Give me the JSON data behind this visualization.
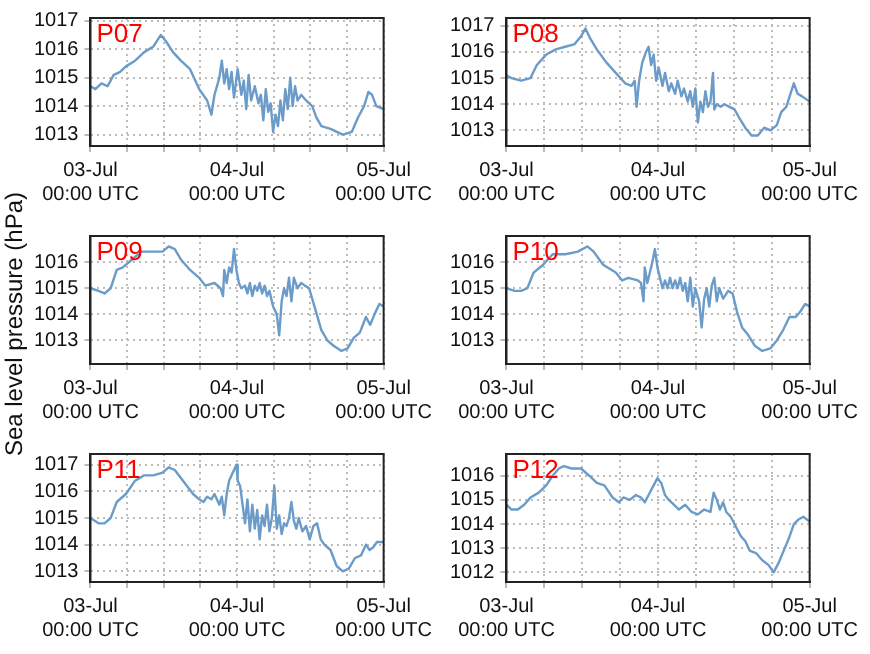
{
  "chart_data": [
    {
      "type": "line",
      "title": "P07",
      "xlim": [
        "--07-03",
        "--07-05"
      ],
      "xticks": [
        {
          "value": "--07-03",
          "label": "03-Jul\n00:00 UTC"
        },
        {
          "value": "--07-03T06:00",
          "label": null
        },
        {
          "value": "--07-03T12:00",
          "label": null
        },
        {
          "value": "--07-03T18:00",
          "label": null
        },
        {
          "value": "--07-04",
          "label": "04-Jul\n00:00 UTC"
        },
        {
          "value": "--07-04T06:00",
          "label": null
        },
        {
          "value": "--07-04T12:00",
          "label": null
        },
        {
          "value": "--07-04T18:00",
          "label": null
        },
        {
          "value": "--07-05",
          "label": "05-Jul\n00:00 UTC"
        }
      ],
      "ylim": [
        1012.6,
        1017.1
      ],
      "yticks": [
        1013,
        1014,
        1015,
        1016,
        1017
      ],
      "grid": true,
      "line_style": "solid",
      "marker": "none",
      "series": [
        {
          "color": "#6b9bc8",
          "x": [
            "--07-03T00:00",
            "--07-03T00:48",
            "--07-03T01:48",
            "--07-03T02:48",
            "--07-03T03:48",
            "--07-03T04:48",
            "--07-03T05:48",
            "--07-03T07:18",
            "--07-03T08:48",
            "--07-03T10:18",
            "--07-03T11:30",
            "--07-03T12:18",
            "--07-03T13:30",
            "--07-03T14:48",
            "--07-03T16:18",
            "--07-03T17:48",
            "--07-03T19:06",
            "--07-03T19:48",
            "--07-03T20:18",
            "--07-03T21:06",
            "--07-03T21:30",
            "--07-03T21:54",
            "--07-03T22:18",
            "--07-03T22:42",
            "--07-03T23:06",
            "--07-03T23:30",
            "--07-04T00:06",
            "--07-04T00:42",
            "--07-04T01:06",
            "--07-04T01:30",
            "--07-04T01:54",
            "--07-04T02:18",
            "--07-04T02:54",
            "--07-04T03:30",
            "--07-04T03:54",
            "--07-04T04:18",
            "--07-04T04:42",
            "--07-04T05:06",
            "--07-04T05:30",
            "--07-04T05:54",
            "--07-04T06:18",
            "--07-04T06:42",
            "--07-04T07:06",
            "--07-04T07:30",
            "--07-04T07:54",
            "--07-04T08:18",
            "--07-04T08:42",
            "--07-04T09:06",
            "--07-04T09:30",
            "--07-04T09:54",
            "--07-04T10:30",
            "--07-04T11:18",
            "--07-04T12:18",
            "--07-04T13:00",
            "--07-04T13:48",
            "--07-04T15:18",
            "--07-04T17:18",
            "--07-04T18:48",
            "--07-04T19:48",
            "--07-04T20:48",
            "--07-04T21:30",
            "--07-04T22:06",
            "--07-04T22:48",
            "--07-05T00:00"
          ],
          "values": [
            1014.7,
            1014.6,
            1014.8,
            1014.7,
            1015.1,
            1015.2,
            1015.4,
            1015.6,
            1015.9,
            1016.1,
            1016.5,
            1016.3,
            1015.9,
            1015.6,
            1015.3,
            1014.6,
            1014.2,
            1013.7,
            1014.4,
            1015.0,
            1015.6,
            1014.8,
            1015.3,
            1014.6,
            1015.2,
            1014.3,
            1015.3,
            1014.4,
            1014.9,
            1013.9,
            1015.1,
            1014.2,
            1014.7,
            1014.1,
            1014.4,
            1013.5,
            1014.6,
            1013.8,
            1014.1,
            1013.1,
            1013.7,
            1013.3,
            1014.2,
            1013.5,
            1014.6,
            1013.9,
            1015.0,
            1014.0,
            1014.7,
            1014.2,
            1014.4,
            1014.2,
            1014.0,
            1013.6,
            1013.3,
            1013.2,
            1013.0,
            1013.1,
            1013.6,
            1014.0,
            1014.5,
            1014.4,
            1014.0,
            1013.9
          ]
        }
      ]
    },
    {
      "type": "line",
      "title": "P08",
      "xlim": [
        "--07-03",
        "--07-05"
      ],
      "xticks": [
        {
          "value": "--07-03",
          "label": "03-Jul\n00:00 UTC"
        },
        {
          "value": "--07-03T06:00",
          "label": null
        },
        {
          "value": "--07-03T12:00",
          "label": null
        },
        {
          "value": "--07-03T18:00",
          "label": null
        },
        {
          "value": "--07-04",
          "label": "04-Jul\n00:00 UTC"
        },
        {
          "value": "--07-04T06:00",
          "label": null
        },
        {
          "value": "--07-04T12:00",
          "label": null
        },
        {
          "value": "--07-04T18:00",
          "label": null
        },
        {
          "value": "--07-05",
          "label": "05-Jul\n00:00 UTC"
        }
      ],
      "ylim": [
        1012.4,
        1017.3
      ],
      "yticks": [
        1013,
        1014,
        1015,
        1016,
        1017
      ],
      "grid": true,
      "line_style": "solid",
      "marker": "none",
      "series": [
        {
          "color": "#6b9bc8",
          "x": [
            "--07-03T00:00",
            "--07-03T00:48",
            "--07-03T02:18",
            "--07-03T03:48",
            "--07-03T04:48",
            "--07-03T06:18",
            "--07-03T07:48",
            "--07-03T09:18",
            "--07-03T10:48",
            "--07-03T11:48",
            "--07-03T12:30",
            "--07-03T13:18",
            "--07-03T14:18",
            "--07-03T15:48",
            "--07-03T17:18",
            "--07-03T18:48",
            "--07-03T19:48",
            "--07-03T20:18",
            "--07-03T20:36",
            "--07-03T21:00",
            "--07-03T21:30",
            "--07-03T22:06",
            "--07-03T22:30",
            "--07-03T22:54",
            "--07-03T23:18",
            "--07-03T23:42",
            "--07-04T00:06",
            "--07-04T00:42",
            "--07-04T01:06",
            "--07-04T01:42",
            "--07-04T02:06",
            "--07-04T02:42",
            "--07-04T03:06",
            "--07-04T03:42",
            "--07-04T04:06",
            "--07-04T04:42",
            "--07-04T05:06",
            "--07-04T05:30",
            "--07-04T05:54",
            "--07-04T06:18",
            "--07-04T06:42",
            "--07-04T07:06",
            "--07-04T07:30",
            "--07-04T07:54",
            "--07-04T08:18",
            "--07-04T08:42",
            "--07-04T08:54",
            "--07-04T09:18",
            "--07-04T09:54",
            "--07-04T10:30",
            "--07-04T11:18",
            "--07-04T12:06",
            "--07-04T12:48",
            "--07-04T13:48",
            "--07-04T14:48",
            "--07-04T15:48",
            "--07-04T16:48",
            "--07-04T17:48",
            "--07-04T18:48",
            "--07-04T19:30",
            "--07-04T20:18",
            "--07-04T21:06",
            "--07-04T21:30",
            "--07-04T22:06",
            "--07-04T22:48",
            "--07-05T00:00"
          ],
          "values": [
            1015.1,
            1015.0,
            1014.9,
            1015.0,
            1015.5,
            1015.9,
            1016.1,
            1016.2,
            1016.3,
            1016.6,
            1016.9,
            1016.5,
            1016.1,
            1015.6,
            1015.2,
            1014.8,
            1014.7,
            1014.9,
            1013.9,
            1014.9,
            1015.6,
            1016.0,
            1016.2,
            1015.5,
            1015.9,
            1014.9,
            1015.4,
            1014.7,
            1015.2,
            1014.5,
            1014.8,
            1014.4,
            1014.9,
            1014.3,
            1014.6,
            1014.1,
            1014.5,
            1013.9,
            1014.6,
            1013.3,
            1014.1,
            1013.7,
            1014.5,
            1013.9,
            1014.1,
            1015.2,
            1013.8,
            1014.0,
            1013.9,
            1014.0,
            1013.9,
            1013.8,
            1013.5,
            1013.1,
            1012.8,
            1012.8,
            1013.1,
            1013.0,
            1013.2,
            1013.7,
            1013.9,
            1014.5,
            1014.8,
            1014.4,
            1014.3,
            1014.1
          ]
        }
      ]
    },
    {
      "type": "line",
      "title": "P09",
      "ylabel": "Sea level pressure (hPa)",
      "xlim": [
        "--07-03",
        "--07-05"
      ],
      "xticks": [
        {
          "value": "--07-03",
          "label": "03-Jul\n00:00 UTC"
        },
        {
          "value": "--07-03T06:00",
          "label": null
        },
        {
          "value": "--07-03T12:00",
          "label": null
        },
        {
          "value": "--07-03T18:00",
          "label": null
        },
        {
          "value": "--07-04",
          "label": "04-Jul\n00:00 UTC"
        },
        {
          "value": "--07-04T06:00",
          "label": null
        },
        {
          "value": "--07-04T12:00",
          "label": null
        },
        {
          "value": "--07-04T18:00",
          "label": null
        },
        {
          "value": "--07-05",
          "label": "05-Jul\n00:00 UTC"
        }
      ],
      "ylim": [
        1012.1,
        1017.0
      ],
      "yticks": [
        1013,
        1014,
        1015,
        1016
      ],
      "grid": true,
      "line_style": "solid",
      "marker": "none",
      "series": [
        {
          "color": "#6b9bc8",
          "x": [
            "--07-03T00:00",
            "--07-03T01:18",
            "--07-03T02:18",
            "--07-03T03:18",
            "--07-03T04:18",
            "--07-03T05:18",
            "--07-03T06:48",
            "--07-03T08:18",
            "--07-03T10:18",
            "--07-03T11:48",
            "--07-03T12:48",
            "--07-03T13:48",
            "--07-03T14:48",
            "--07-03T16:18",
            "--07-03T17:48",
            "--07-03T18:48",
            "--07-03T20:18",
            "--07-03T21:18",
            "--07-03T21:42",
            "--07-03T21:54",
            "--07-03T22:18",
            "--07-03T22:42",
            "--07-03T23:06",
            "--07-03T23:30",
            "--07-03T23:54",
            "--07-04T00:18",
            "--07-04T00:42",
            "--07-04T01:18",
            "--07-04T01:42",
            "--07-04T02:06",
            "--07-04T02:30",
            "--07-04T02:54",
            "--07-04T03:18",
            "--07-04T03:42",
            "--07-04T04:06",
            "--07-04T04:30",
            "--07-04T04:54",
            "--07-04T05:18",
            "--07-04T05:54",
            "--07-04T06:30",
            "--07-04T06:54",
            "--07-04T07:18",
            "--07-04T07:42",
            "--07-04T08:06",
            "--07-04T08:30",
            "--07-04T08:54",
            "--07-04T09:18",
            "--07-04T09:54",
            "--07-04T10:30",
            "--07-04T11:06",
            "--07-04T11:48",
            "--07-04T12:48",
            "--07-04T13:48",
            "--07-04T14:48",
            "--07-04T15:48",
            "--07-04T17:06",
            "--07-04T18:06",
            "--07-04T19:06",
            "--07-04T20:06",
            "--07-04T21:06",
            "--07-04T21:48",
            "--07-04T22:30",
            "--07-04T23:18",
            "--07-05T00:00"
          ],
          "values": [
            1015.0,
            1014.9,
            1014.8,
            1015.0,
            1015.7,
            1015.8,
            1016.1,
            1016.4,
            1016.4,
            1016.4,
            1016.6,
            1016.5,
            1016.1,
            1015.7,
            1015.4,
            1015.1,
            1015.2,
            1015.0,
            1014.7,
            1015.7,
            1015.2,
            1015.8,
            1015.6,
            1016.5,
            1015.7,
            1015.2,
            1015.0,
            1015.1,
            1014.8,
            1015.2,
            1014.7,
            1015.1,
            1014.9,
            1015.2,
            1014.8,
            1015.1,
            1014.7,
            1014.9,
            1014.3,
            1014.0,
            1013.2,
            1014.5,
            1015.0,
            1014.7,
            1015.4,
            1014.5,
            1015.4,
            1015.0,
            1015.2,
            1015.1,
            1015.0,
            1014.2,
            1013.4,
            1013.0,
            1012.8,
            1012.6,
            1012.7,
            1013.1,
            1013.3,
            1013.9,
            1013.6,
            1014.0,
            1014.4,
            1014.3
          ]
        }
      ]
    },
    {
      "type": "line",
      "title": "P10",
      "xlim": [
        "--07-03",
        "--07-05"
      ],
      "xticks": [
        {
          "value": "--07-03",
          "label": "03-Jul\n00:00 UTC"
        },
        {
          "value": "--07-03T06:00",
          "label": null
        },
        {
          "value": "--07-03T12:00",
          "label": null
        },
        {
          "value": "--07-03T18:00",
          "label": null
        },
        {
          "value": "--07-04",
          "label": "04-Jul\n00:00 UTC"
        },
        {
          "value": "--07-04T06:00",
          "label": null
        },
        {
          "value": "--07-04T12:00",
          "label": null
        },
        {
          "value": "--07-04T18:00",
          "label": null
        },
        {
          "value": "--07-05",
          "label": "05-Jul\n00:00 UTC"
        }
      ],
      "ylim": [
        1012.1,
        1017.0
      ],
      "yticks": [
        1013,
        1014,
        1015,
        1016
      ],
      "grid": true,
      "line_style": "solid",
      "marker": "none",
      "series": [
        {
          "color": "#6b9bc8",
          "x": [
            "--07-03T00:00",
            "--07-03T01:18",
            "--07-03T02:18",
            "--07-03T03:18",
            "--07-03T04:18",
            "--07-03T05:48",
            "--07-03T07:18",
            "--07-03T09:18",
            "--07-03T11:18",
            "--07-03T12:48",
            "--07-03T13:48",
            "--07-03T15:18",
            "--07-03T17:18",
            "--07-03T18:18",
            "--07-03T19:18",
            "--07-03T20:48",
            "--07-03T21:18",
            "--07-03T21:42",
            "--07-03T21:54",
            "--07-03T22:18",
            "--07-03T22:42",
            "--07-03T23:06",
            "--07-03T23:30",
            "--07-03T23:54",
            "--07-04T00:18",
            "--07-04T00:42",
            "--07-04T01:06",
            "--07-04T01:30",
            "--07-04T01:54",
            "--07-04T02:18",
            "--07-04T02:42",
            "--07-04T03:06",
            "--07-04T03:30",
            "--07-04T03:54",
            "--07-04T04:18",
            "--07-04T04:42",
            "--07-04T05:06",
            "--07-04T05:30",
            "--07-04T05:54",
            "--07-04T06:30",
            "--07-04T06:54",
            "--07-04T07:18",
            "--07-04T07:42",
            "--07-04T08:06",
            "--07-04T08:30",
            "--07-04T08:54",
            "--07-04T09:18",
            "--07-04T09:42",
            "--07-04T10:18",
            "--07-04T11:06",
            "--07-04T11:48",
            "--07-04T12:30",
            "--07-04T13:18",
            "--07-04T14:18",
            "--07-04T15:18",
            "--07-04T16:30",
            "--07-04T17:48",
            "--07-04T18:48",
            "--07-04T19:48",
            "--07-04T20:48",
            "--07-04T21:48",
            "--07-04T22:30",
            "--07-04T23:18",
            "--07-05T00:00"
          ],
          "values": [
            1015.0,
            1014.9,
            1014.9,
            1015.0,
            1015.6,
            1015.9,
            1016.3,
            1016.3,
            1016.4,
            1016.6,
            1016.4,
            1015.9,
            1015.6,
            1015.3,
            1015.4,
            1015.3,
            1015.2,
            1014.5,
            1015.8,
            1015.2,
            1015.6,
            1016.0,
            1016.5,
            1015.8,
            1015.4,
            1015.0,
            1015.3,
            1015.0,
            1015.4,
            1015.0,
            1015.3,
            1015.0,
            1015.4,
            1014.9,
            1015.2,
            1014.5,
            1015.4,
            1014.3,
            1015.0,
            1014.5,
            1013.5,
            1014.6,
            1015.0,
            1014.3,
            1015.1,
            1015.4,
            1014.5,
            1015.0,
            1014.6,
            1014.9,
            1014.8,
            1014.1,
            1013.5,
            1013.2,
            1012.8,
            1012.6,
            1012.7,
            1013.0,
            1013.4,
            1013.9,
            1013.9,
            1014.1,
            1014.4,
            1014.3
          ]
        }
      ]
    },
    {
      "type": "line",
      "title": "P11",
      "xlim": [
        "--07-03",
        "--07-05"
      ],
      "xticks": [
        {
          "value": "--07-03",
          "label": "03-Jul\n00:00 UTC"
        },
        {
          "value": "--07-03T06:00",
          "label": null
        },
        {
          "value": "--07-03T12:00",
          "label": null
        },
        {
          "value": "--07-03T18:00",
          "label": null
        },
        {
          "value": "--07-04",
          "label": "04-Jul\n00:00 UTC"
        },
        {
          "value": "--07-04T06:00",
          "label": null
        },
        {
          "value": "--07-04T12:00",
          "label": null
        },
        {
          "value": "--07-04T18:00",
          "label": null
        },
        {
          "value": "--07-05",
          "label": "05-Jul\n00:00 UTC"
        }
      ],
      "ylim": [
        1012.6,
        1017.4
      ],
      "yticks": [
        1013,
        1014,
        1015,
        1016,
        1017
      ],
      "grid": true,
      "line_style": "solid",
      "marker": "none",
      "series": [
        {
          "color": "#6b9bc8",
          "x": [
            "--07-03T00:00",
            "--07-03T01:18",
            "--07-03T02:18",
            "--07-03T03:18",
            "--07-03T04:18",
            "--07-03T05:48",
            "--07-03T07:18",
            "--07-03T08:48",
            "--07-03T10:18",
            "--07-03T11:48",
            "--07-03T12:48",
            "--07-03T13:48",
            "--07-03T14:48",
            "--07-03T15:48",
            "--07-03T16:48",
            "--07-03T17:48",
            "--07-03T18:30",
            "--07-03T19:06",
            "--07-03T19:48",
            "--07-03T20:18",
            "--07-03T21:06",
            "--07-03T21:30",
            "--07-03T21:54",
            "--07-03T22:18",
            "--07-03T22:42",
            "--07-03T23:06",
            "--07-03T23:30",
            "--07-03T23:54",
            "--07-04T00:06",
            "--07-04T00:30",
            "--07-04T00:54",
            "--07-04T01:18",
            "--07-04T01:42",
            "--07-04T02:06",
            "--07-04T02:30",
            "--07-04T02:54",
            "--07-04T03:18",
            "--07-04T03:42",
            "--07-04T04:06",
            "--07-04T04:30",
            "--07-04T04:54",
            "--07-04T05:18",
            "--07-04T05:42",
            "--07-04T06:06",
            "--07-04T06:30",
            "--07-04T06:54",
            "--07-04T07:18",
            "--07-04T07:42",
            "--07-04T08:06",
            "--07-04T08:30",
            "--07-04T08:54",
            "--07-04T09:18",
            "--07-04T09:42",
            "--07-04T10:06",
            "--07-04T10:42",
            "--07-04T11:18",
            "--07-04T11:54",
            "--07-04T12:30",
            "--07-04T13:06",
            "--07-04T13:42",
            "--07-04T14:18",
            "--07-04T15:18",
            "--07-04T16:18",
            "--07-04T17:18",
            "--07-04T18:18",
            "--07-04T19:18",
            "--07-04T20:18",
            "--07-04T21:06",
            "--07-04T21:42",
            "--07-04T22:18",
            "--07-04T22:54",
            "--07-05T00:00"
          ],
          "values": [
            1015.0,
            1014.8,
            1014.8,
            1015.0,
            1015.6,
            1015.9,
            1016.4,
            1016.6,
            1016.6,
            1016.7,
            1016.9,
            1016.8,
            1016.5,
            1016.2,
            1015.9,
            1015.7,
            1015.6,
            1015.8,
            1015.7,
            1015.9,
            1015.5,
            1015.8,
            1015.1,
            1015.9,
            1016.4,
            1016.6,
            1016.8,
            1017.0,
            1016.4,
            1016.2,
            1015.5,
            1014.8,
            1015.7,
            1014.5,
            1015.5,
            1014.6,
            1015.3,
            1014.2,
            1015.1,
            1014.7,
            1015.5,
            1014.5,
            1015.0,
            1016.2,
            1014.6,
            1015.1,
            1014.4,
            1014.8,
            1014.7,
            1015.0,
            1015.6,
            1014.9,
            1014.6,
            1015.0,
            1014.5,
            1014.7,
            1014.2,
            1014.7,
            1014.8,
            1014.2,
            1014.0,
            1013.8,
            1013.2,
            1013.0,
            1013.1,
            1013.5,
            1013.6,
            1014.0,
            1013.8,
            1013.9,
            1014.1,
            1014.1
          ]
        }
      ]
    },
    {
      "type": "line",
      "title": "P12",
      "xlim": [
        "--07-03",
        "--07-05"
      ],
      "xticks": [
        {
          "value": "--07-03",
          "label": "03-Jul\n00:00 UTC"
        },
        {
          "value": "--07-03T06:00",
          "label": null
        },
        {
          "value": "--07-03T12:00",
          "label": null
        },
        {
          "value": "--07-03T18:00",
          "label": null
        },
        {
          "value": "--07-04",
          "label": "04-Jul\n00:00 UTC"
        },
        {
          "value": "--07-04T06:00",
          "label": null
        },
        {
          "value": "--07-04T12:00",
          "label": null
        },
        {
          "value": "--07-04T18:00",
          "label": null
        },
        {
          "value": "--07-05",
          "label": "05-Jul\n00:00 UTC"
        }
      ],
      "ylim": [
        1011.6,
        1016.9
      ],
      "yticks": [
        1012,
        1013,
        1014,
        1015,
        1016
      ],
      "grid": true,
      "line_style": "solid",
      "marker": "none",
      "series": [
        {
          "color": "#6b9bc8",
          "x": [
            "--07-03T00:00",
            "--07-03T00:48",
            "--07-03T01:48",
            "--07-03T02:48",
            "--07-03T03:48",
            "--07-03T05:06",
            "--07-03T06:18",
            "--07-03T07:18",
            "--07-03T08:18",
            "--07-03T09:06",
            "--07-03T10:18",
            "--07-03T11:48",
            "--07-03T13:06",
            "--07-03T14:18",
            "--07-03T15:30",
            "--07-03T16:48",
            "--07-03T17:48",
            "--07-03T18:30",
            "--07-03T19:30",
            "--07-03T20:30",
            "--07-03T21:18",
            "--07-03T21:54",
            "--07-03T22:30",
            "--07-03T23:18",
            "--07-03T23:54",
            "--07-04T00:30",
            "--07-04T01:06",
            "--07-04T01:42",
            "--07-04T02:30",
            "--07-04T03:18",
            "--07-04T04:18",
            "--07-04T05:18",
            "--07-04T06:18",
            "--07-04T07:18",
            "--07-04T08:18",
            "--07-04T08:48",
            "--07-04T09:18",
            "--07-04T09:48",
            "--07-04T10:18",
            "--07-04T10:48",
            "--07-04T11:30",
            "--07-04T12:18",
            "--07-04T13:06",
            "--07-04T13:48",
            "--07-04T14:30",
            "--07-04T15:30",
            "--07-04T16:30",
            "--07-04T17:30",
            "--07-04T18:18",
            "--07-04T19:06",
            "--07-04T19:54",
            "--07-04T20:42",
            "--07-04T21:30",
            "--07-04T22:18",
            "--07-04T23:00",
            "--07-05T00:00"
          ],
          "values": [
            1014.8,
            1014.6,
            1014.6,
            1014.8,
            1015.1,
            1015.3,
            1015.6,
            1016.0,
            1016.3,
            1016.4,
            1016.3,
            1016.3,
            1016.0,
            1015.7,
            1015.6,
            1015.1,
            1014.9,
            1015.1,
            1015.0,
            1015.2,
            1015.1,
            1014.9,
            1015.2,
            1015.6,
            1015.9,
            1015.7,
            1015.2,
            1015.0,
            1014.8,
            1014.6,
            1014.8,
            1014.5,
            1014.4,
            1014.6,
            1014.5,
            1015.3,
            1015.0,
            1014.6,
            1014.9,
            1014.5,
            1014.3,
            1013.9,
            1013.5,
            1013.3,
            1012.9,
            1012.8,
            1012.5,
            1012.3,
            1012.0,
            1012.4,
            1012.9,
            1013.4,
            1014.0,
            1014.2,
            1014.3,
            1014.1
          ]
        }
      ]
    }
  ]
}
